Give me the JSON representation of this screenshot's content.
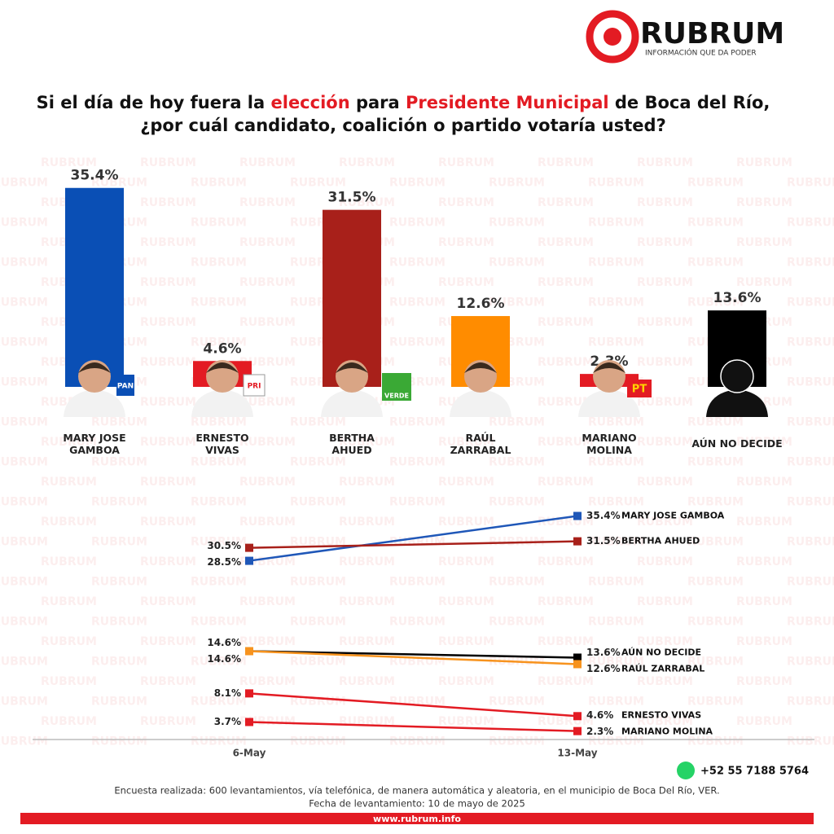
{
  "header": {
    "brand": "RUBRUM",
    "tagline": "INFORMACIÓN QUE DA PODER",
    "title_lines": [
      [
        {
          "text": "Si el día de hoy fuera la ",
          "color": "#111111"
        },
        {
          "text": "elección",
          "color": "#e31b23"
        },
        {
          "text": " para ",
          "color": "#111111"
        },
        {
          "text": "Presidente Municipal",
          "color": "#e31b23"
        },
        {
          "text": " de Boca del Río,",
          "color": "#111111"
        }
      ],
      [
        {
          "text": "¿por cuál candidato, coalición o partido votaría usted?",
          "color": "#111111"
        }
      ]
    ]
  },
  "badges": [
    "PAN",
    "PRI",
    "VERDE",
    "PT"
  ],
  "chart_data": [
    {
      "type": "bar",
      "categories": [
        "MARY JOSE\nGAMBOA",
        "ERNESTO\nVIVAS",
        "BERTHA\nAHUED",
        "RAÚL\nZARRABAL",
        "MARIANO\nMOLINA",
        "AÚN NO DECIDE"
      ],
      "values": [
        35.4,
        4.6,
        31.5,
        12.6,
        2.3,
        13.6
      ],
      "value_labels": [
        "35.4%",
        "4.6%",
        "31.5%",
        "12.6%",
        "2.3%",
        "13.6%"
      ],
      "colors": [
        "#0a4fb5",
        "#e31b23",
        "#a8201a",
        "#ff8c00",
        "#e31b23",
        "#000000"
      ]
    },
    {
      "type": "line",
      "x": [
        "6-May",
        "13-May"
      ],
      "series": [
        {
          "name": "MARY JOSE GAMBOA",
          "color": "#1f57b8",
          "values": [
            28.5,
            35.4
          ],
          "value_labels": [
            "28.5%",
            "35.4%"
          ]
        },
        {
          "name": "BERTHA AHUED",
          "color": "#a8201a",
          "values": [
            30.5,
            31.5
          ],
          "value_labels": [
            "30.5%",
            "31.5%"
          ]
        },
        {
          "name": "AÚN NO DECIDE",
          "color": "#000000",
          "values": [
            14.6,
            13.6
          ],
          "value_labels": [
            "14.6%",
            "13.6%"
          ]
        },
        {
          "name": "RAÚL ZARRABAL",
          "color": "#f7931e",
          "values": [
            14.6,
            12.6
          ],
          "value_labels": [
            "14.6%",
            "12.6%"
          ]
        },
        {
          "name": "ERNESTO VIVAS",
          "color": "#e31b23",
          "values": [
            8.1,
            4.6
          ],
          "value_labels": [
            "8.1%",
            "4.6%"
          ]
        },
        {
          "name": "MARIANO MOLINA",
          "color": "#e31b23",
          "values": [
            3.7,
            2.3
          ],
          "value_labels": [
            "3.7%",
            "2.3%"
          ]
        }
      ]
    }
  ],
  "footer": {
    "phone": "+52 55 7188 5764",
    "note_lines": [
      "Encuesta realizada: 600 levantamientos, vía telefónica, de manera automática y aleatoria, en el municipio de Boca Del Río, VER.",
      "Fecha de levantamiento: 10 de mayo de 2025"
    ],
    "url": "www.rubrum.info"
  }
}
